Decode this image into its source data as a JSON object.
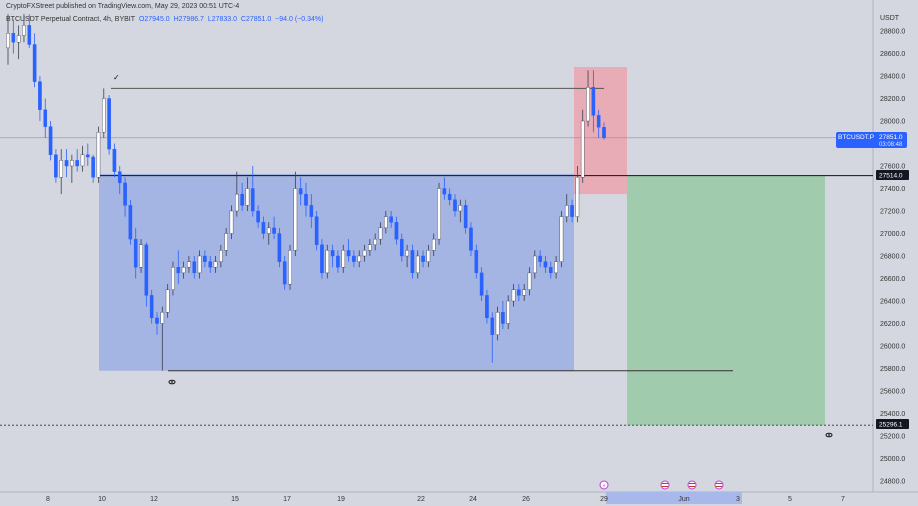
{
  "header": {
    "text": "CryptoFXStreet published on TradingView.com, May 29, 2023 00:51 UTC-4"
  },
  "symbol": {
    "title": "BTCUSDT Perpetual Contract, 4h, BYBIT",
    "open": "O27945.0",
    "high": "H27986.7",
    "low": "L27833.0",
    "close": "C27851.0",
    "change": "−94.0 (−0.34%)"
  },
  "axis": {
    "currency": "USDT",
    "price_ticks": [
      "28800.0",
      "28600.0",
      "28400.0",
      "28200.0",
      "28000.0",
      "27600.0",
      "27400.0",
      "27200.0",
      "27000.0",
      "26800.0",
      "26600.0",
      "26400.0",
      "26200.0",
      "26000.0",
      "25800.0",
      "25600.0",
      "25400.0",
      "25200.0",
      "25000.0",
      "24800.0"
    ],
    "date_ticks": [
      "8",
      "10",
      "12",
      "15",
      "17",
      "19",
      "22",
      "24",
      "26",
      "29",
      "Jun",
      "3",
      "5",
      "7"
    ]
  },
  "badges": {
    "symbol_label": "BTCUSDT.P",
    "current_price": "27851.0",
    "countdown": "03:08:48",
    "level_upper": "27514.0",
    "level_lower": "25296.1"
  },
  "colors": {
    "background": "#d5d7e0",
    "up": "#ffffff",
    "down": "#2962ff",
    "range_box": "#7b98e6",
    "stop_box": "#ee9ea8",
    "target_box": "#8fc79c",
    "badge": "#2962ff"
  },
  "chart_data": {
    "type": "candlestick",
    "title": "BTCUSDT Perpetual Contract, 4h, BYBIT",
    "ylabel": "USDT",
    "ylim": [
      24600,
      29000
    ],
    "last_close": 27851.0,
    "reference_levels": [
      27514.0,
      25296.1
    ],
    "annotations": {
      "range_box": {
        "top": 27530,
        "bottom": 25780
      },
      "range_high_line": 28290,
      "range_low_line": 25780,
      "stop_box": {
        "top": 28480,
        "bottom": 27350
      },
      "target_box": {
        "top": 27514,
        "bottom": 25296
      }
    },
    "candles": [
      {
        "o": 28650,
        "h": 28950,
        "l": 28500,
        "c": 28780
      },
      {
        "o": 28780,
        "h": 28900,
        "l": 28600,
        "c": 28700
      },
      {
        "o": 28700,
        "h": 28850,
        "l": 28550,
        "c": 28760
      },
      {
        "o": 28760,
        "h": 28950,
        "l": 28700,
        "c": 28850
      },
      {
        "o": 28850,
        "h": 28950,
        "l": 28650,
        "c": 28680
      },
      {
        "o": 28680,
        "h": 28780,
        "l": 28300,
        "c": 28350
      },
      {
        "o": 28350,
        "h": 28400,
        "l": 28000,
        "c": 28100
      },
      {
        "o": 28100,
        "h": 28200,
        "l": 27850,
        "c": 27950
      },
      {
        "o": 27950,
        "h": 28000,
        "l": 27650,
        "c": 27700
      },
      {
        "o": 27700,
        "h": 27750,
        "l": 27450,
        "c": 27500
      },
      {
        "o": 27500,
        "h": 27750,
        "l": 27350,
        "c": 27650
      },
      {
        "o": 27650,
        "h": 27750,
        "l": 27500,
        "c": 27600
      },
      {
        "o": 27600,
        "h": 27700,
        "l": 27450,
        "c": 27650
      },
      {
        "o": 27650,
        "h": 27750,
        "l": 27550,
        "c": 27600
      },
      {
        "o": 27600,
        "h": 27780,
        "l": 27550,
        "c": 27700
      },
      {
        "o": 27700,
        "h": 27800,
        "l": 27600,
        "c": 27680
      },
      {
        "o": 27680,
        "h": 27700,
        "l": 27450,
        "c": 27500
      },
      {
        "o": 27500,
        "h": 27950,
        "l": 27450,
        "c": 27900
      },
      {
        "o": 27900,
        "h": 28290,
        "l": 27850,
        "c": 28200
      },
      {
        "o": 28200,
        "h": 28230,
        "l": 27700,
        "c": 27750
      },
      {
        "o": 27750,
        "h": 27800,
        "l": 27500,
        "c": 27550
      },
      {
        "o": 27550,
        "h": 27600,
        "l": 27350,
        "c": 27450
      },
      {
        "o": 27450,
        "h": 27500,
        "l": 27150,
        "c": 27250
      },
      {
        "o": 27250,
        "h": 27300,
        "l": 26900,
        "c": 26950
      },
      {
        "o": 26950,
        "h": 27050,
        "l": 26600,
        "c": 26700
      },
      {
        "o": 26700,
        "h": 26950,
        "l": 26650,
        "c": 26900
      },
      {
        "o": 26900,
        "h": 26920,
        "l": 26350,
        "c": 26450
      },
      {
        "o": 26450,
        "h": 26500,
        "l": 26200,
        "c": 26250
      },
      {
        "o": 26250,
        "h": 26300,
        "l": 26100,
        "c": 26200
      },
      {
        "o": 26200,
        "h": 26350,
        "l": 25780,
        "c": 26300
      },
      {
        "o": 26300,
        "h": 26550,
        "l": 26250,
        "c": 26500
      },
      {
        "o": 26500,
        "h": 26750,
        "l": 26450,
        "c": 26700
      },
      {
        "o": 26700,
        "h": 26850,
        "l": 26550,
        "c": 26650
      },
      {
        "o": 26650,
        "h": 26750,
        "l": 26600,
        "c": 26700
      },
      {
        "o": 26700,
        "h": 26800,
        "l": 26650,
        "c": 26750
      },
      {
        "o": 26750,
        "h": 26800,
        "l": 26600,
        "c": 26650
      },
      {
        "o": 26650,
        "h": 26850,
        "l": 26600,
        "c": 26800
      },
      {
        "o": 26800,
        "h": 26850,
        "l": 26700,
        "c": 26750
      },
      {
        "o": 26750,
        "h": 26800,
        "l": 26650,
        "c": 26700
      },
      {
        "o": 26700,
        "h": 26800,
        "l": 26650,
        "c": 26750
      },
      {
        "o": 26750,
        "h": 26900,
        "l": 26700,
        "c": 26850
      },
      {
        "o": 26850,
        "h": 27050,
        "l": 26800,
        "c": 27000
      },
      {
        "o": 27000,
        "h": 27250,
        "l": 26950,
        "c": 27200
      },
      {
        "o": 27200,
        "h": 27550,
        "l": 27150,
        "c": 27350
      },
      {
        "o": 27350,
        "h": 27450,
        "l": 27200,
        "c": 27250
      },
      {
        "o": 27250,
        "h": 27500,
        "l": 27200,
        "c": 27400
      },
      {
        "o": 27400,
        "h": 27600,
        "l": 27150,
        "c": 27200
      },
      {
        "o": 27200,
        "h": 27250,
        "l": 27050,
        "c": 27100
      },
      {
        "o": 27100,
        "h": 27150,
        "l": 26950,
        "c": 27000
      },
      {
        "o": 27000,
        "h": 27100,
        "l": 26900,
        "c": 27050
      },
      {
        "o": 27050,
        "h": 27150,
        "l": 26950,
        "c": 27000
      },
      {
        "o": 27000,
        "h": 27050,
        "l": 26700,
        "c": 26750
      },
      {
        "o": 26750,
        "h": 26800,
        "l": 26500,
        "c": 26550
      },
      {
        "o": 26550,
        "h": 26900,
        "l": 26500,
        "c": 26850
      },
      {
        "o": 26850,
        "h": 27550,
        "l": 26800,
        "c": 27400
      },
      {
        "o": 27400,
        "h": 27500,
        "l": 27250,
        "c": 27350
      },
      {
        "o": 27350,
        "h": 27450,
        "l": 27150,
        "c": 27250
      },
      {
        "o": 27250,
        "h": 27350,
        "l": 27050,
        "c": 27150
      },
      {
        "o": 27150,
        "h": 27200,
        "l": 26850,
        "c": 26900
      },
      {
        "o": 26900,
        "h": 26950,
        "l": 26600,
        "c": 26650
      },
      {
        "o": 26650,
        "h": 26900,
        "l": 26600,
        "c": 26850
      },
      {
        "o": 26850,
        "h": 26900,
        "l": 26700,
        "c": 26800
      },
      {
        "o": 26800,
        "h": 26850,
        "l": 26650,
        "c": 26700
      },
      {
        "o": 26700,
        "h": 26900,
        "l": 26650,
        "c": 26850
      },
      {
        "o": 26850,
        "h": 26950,
        "l": 26750,
        "c": 26800
      },
      {
        "o": 26800,
        "h": 26850,
        "l": 26700,
        "c": 26750
      },
      {
        "o": 26750,
        "h": 26850,
        "l": 26700,
        "c": 26800
      },
      {
        "o": 26800,
        "h": 26900,
        "l": 26750,
        "c": 26850
      },
      {
        "o": 26850,
        "h": 26950,
        "l": 26800,
        "c": 26900
      },
      {
        "o": 26900,
        "h": 27000,
        "l": 26850,
        "c": 26950
      },
      {
        "o": 26950,
        "h": 27100,
        "l": 26900,
        "c": 27050
      },
      {
        "o": 27050,
        "h": 27200,
        "l": 27000,
        "c": 27150
      },
      {
        "o": 27150,
        "h": 27200,
        "l": 27050,
        "c": 27100
      },
      {
        "o": 27100,
        "h": 27150,
        "l": 26900,
        "c": 26950
      },
      {
        "o": 26950,
        "h": 27000,
        "l": 26750,
        "c": 26800
      },
      {
        "o": 26800,
        "h": 26900,
        "l": 26700,
        "c": 26850
      },
      {
        "o": 26850,
        "h": 26900,
        "l": 26600,
        "c": 26650
      },
      {
        "o": 26650,
        "h": 26850,
        "l": 26600,
        "c": 26800
      },
      {
        "o": 26800,
        "h": 26850,
        "l": 26700,
        "c": 26750
      },
      {
        "o": 26750,
        "h": 26900,
        "l": 26700,
        "c": 26850
      },
      {
        "o": 26850,
        "h": 27000,
        "l": 26800,
        "c": 26950
      },
      {
        "o": 26950,
        "h": 27450,
        "l": 26900,
        "c": 27400
      },
      {
        "o": 27400,
        "h": 27500,
        "l": 27300,
        "c": 27350
      },
      {
        "o": 27350,
        "h": 27400,
        "l": 27250,
        "c": 27300
      },
      {
        "o": 27300,
        "h": 27350,
        "l": 27150,
        "c": 27200
      },
      {
        "o": 27200,
        "h": 27300,
        "l": 27100,
        "c": 27250
      },
      {
        "o": 27250,
        "h": 27300,
        "l": 27000,
        "c": 27050
      },
      {
        "o": 27050,
        "h": 27100,
        "l": 26800,
        "c": 26850
      },
      {
        "o": 26850,
        "h": 26900,
        "l": 26600,
        "c": 26650
      },
      {
        "o": 26650,
        "h": 26700,
        "l": 26400,
        "c": 26450
      },
      {
        "o": 26450,
        "h": 26500,
        "l": 26200,
        "c": 26250
      },
      {
        "o": 26250,
        "h": 26300,
        "l": 25850,
        "c": 26100
      },
      {
        "o": 26100,
        "h": 26350,
        "l": 26050,
        "c": 26300
      },
      {
        "o": 26300,
        "h": 26400,
        "l": 26150,
        "c": 26200
      },
      {
        "o": 26200,
        "h": 26450,
        "l": 26150,
        "c": 26400
      },
      {
        "o": 26400,
        "h": 26550,
        "l": 26350,
        "c": 26500
      },
      {
        "o": 26500,
        "h": 26550,
        "l": 26400,
        "c": 26450
      },
      {
        "o": 26450,
        "h": 26550,
        "l": 26400,
        "c": 26500
      },
      {
        "o": 26500,
        "h": 26700,
        "l": 26450,
        "c": 26650
      },
      {
        "o": 26650,
        "h": 26850,
        "l": 26600,
        "c": 26800
      },
      {
        "o": 26800,
        "h": 26850,
        "l": 26700,
        "c": 26750
      },
      {
        "o": 26750,
        "h": 26800,
        "l": 26650,
        "c": 26700
      },
      {
        "o": 26700,
        "h": 26750,
        "l": 26600,
        "c": 26650
      },
      {
        "o": 26650,
        "h": 26800,
        "l": 26600,
        "c": 26750
      },
      {
        "o": 26750,
        "h": 27200,
        "l": 26700,
        "c": 27150
      },
      {
        "o": 27150,
        "h": 27350,
        "l": 27100,
        "c": 27250
      },
      {
        "o": 27250,
        "h": 27300,
        "l": 27100,
        "c": 27150
      },
      {
        "o": 27150,
        "h": 27600,
        "l": 27100,
        "c": 27500
      },
      {
        "o": 27500,
        "h": 28100,
        "l": 27450,
        "c": 28000
      },
      {
        "o": 28000,
        "h": 28450,
        "l": 27950,
        "c": 28300
      },
      {
        "o": 28300,
        "h": 28450,
        "l": 27900,
        "c": 28050
      },
      {
        "o": 28050,
        "h": 28100,
        "l": 27850,
        "c": 27945
      },
      {
        "o": 27945,
        "h": 27987,
        "l": 27833,
        "c": 27851
      }
    ]
  }
}
